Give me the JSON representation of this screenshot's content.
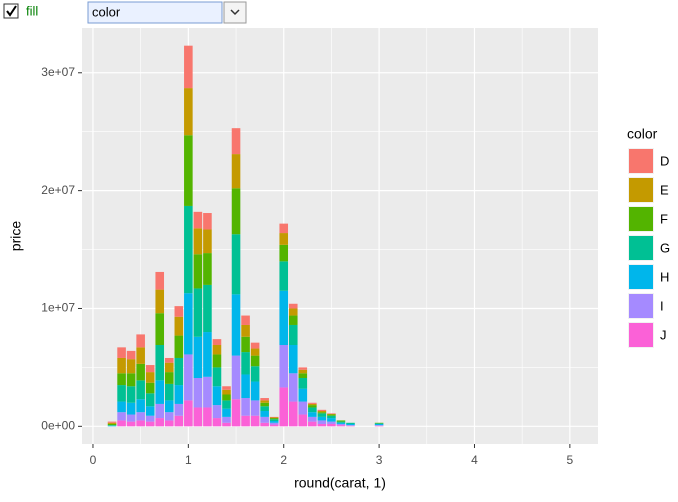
{
  "controls": {
    "fill_label": "fill",
    "fill_checked": true,
    "select_value": "color"
  },
  "chart_data": {
    "type": "stacked-bar",
    "x_label": "round(carat, 1)",
    "y_label": "price",
    "legend_title": "color",
    "x": [
      0.2,
      0.3,
      0.4,
      0.5,
      0.6,
      0.7,
      0.8,
      0.9,
      1.0,
      1.1,
      1.2,
      1.3,
      1.4,
      1.5,
      1.6,
      1.7,
      1.8,
      1.9,
      2.0,
      2.1,
      2.2,
      2.3,
      2.4,
      2.5,
      2.6,
      2.7,
      3.0
    ],
    "bar_width": 0.09,
    "series": [
      {
        "name": "D",
        "color": "#F8766D",
        "values": [
          100000,
          900000,
          700000,
          1100000,
          600000,
          1500000,
          400000,
          900000,
          3600000,
          1400000,
          1400000,
          500000,
          300000,
          2200000,
          800000,
          500000,
          200000,
          50000,
          800000,
          400000,
          200000,
          100000,
          100000,
          50000,
          0,
          0,
          0
        ]
      },
      {
        "name": "E",
        "color": "#C49A00",
        "values": [
          100000,
          1300000,
          1200000,
          1400000,
          900000,
          2000000,
          800000,
          1600000,
          4000000,
          2200000,
          2000000,
          800000,
          400000,
          2900000,
          1000000,
          600000,
          200000,
          50000,
          1000000,
          600000,
          300000,
          100000,
          100000,
          50000,
          0,
          0,
          0
        ]
      },
      {
        "name": "F",
        "color": "#53B400",
        "values": [
          100000,
          1000000,
          1100000,
          1400000,
          900000,
          2700000,
          1000000,
          1900000,
          6000000,
          2900000,
          2700000,
          1100000,
          500000,
          3900000,
          1300000,
          900000,
          300000,
          100000,
          1400000,
          800000,
          400000,
          200000,
          100000,
          100000,
          100000,
          0,
          50000
        ]
      },
      {
        "name": "G",
        "color": "#00C094",
        "values": [
          50000,
          1400000,
          1400000,
          1600000,
          1100000,
          3000000,
          1400000,
          2300000,
          7400000,
          4100000,
          4000000,
          1600000,
          700000,
          5100000,
          1900000,
          1300000,
          400000,
          150000,
          2500000,
          1700000,
          900000,
          400000,
          300000,
          200000,
          100000,
          100000,
          50000
        ]
      },
      {
        "name": "H",
        "color": "#00B6EB",
        "values": [
          50000,
          900000,
          1000000,
          1100000,
          800000,
          2000000,
          1000000,
          1600000,
          5200000,
          3500000,
          3800000,
          1600000,
          700000,
          5200000,
          2000000,
          1600000,
          500000,
          150000,
          4600000,
          2400000,
          1100000,
          400000,
          300000,
          300000,
          100000,
          100000,
          100000
        ]
      },
      {
        "name": "I",
        "color": "#A58AFF",
        "values": [
          0,
          700000,
          600000,
          700000,
          500000,
          1200000,
          700000,
          1000000,
          3900000,
          2500000,
          2600000,
          1100000,
          500000,
          3700000,
          1500000,
          1300000,
          500000,
          150000,
          3600000,
          2400000,
          1100000,
          400000,
          300000,
          200000,
          100000,
          50000,
          50000
        ]
      },
      {
        "name": "J",
        "color": "#FB61D7",
        "values": [
          0,
          500000,
          400000,
          500000,
          400000,
          700000,
          500000,
          900000,
          2200000,
          1600000,
          1600000,
          700000,
          300000,
          2300000,
          900000,
          900000,
          300000,
          150000,
          3300000,
          2100000,
          1000000,
          400000,
          200000,
          200000,
          100000,
          50000,
          50000
        ]
      }
    ],
    "xlim": [
      -0.115,
      5.295
    ],
    "xticks": [
      0,
      1,
      2,
      3,
      4,
      5
    ],
    "ylim": [
      -1500000,
      33800000
    ],
    "yticks": [
      {
        "value": 0,
        "label": "0e+00"
      },
      {
        "value": 10000000,
        "label": "1e+07"
      },
      {
        "value": 20000000,
        "label": "2e+07"
      },
      {
        "value": 30000000,
        "label": "3e+07"
      }
    ],
    "grid": true,
    "legend": "right"
  }
}
